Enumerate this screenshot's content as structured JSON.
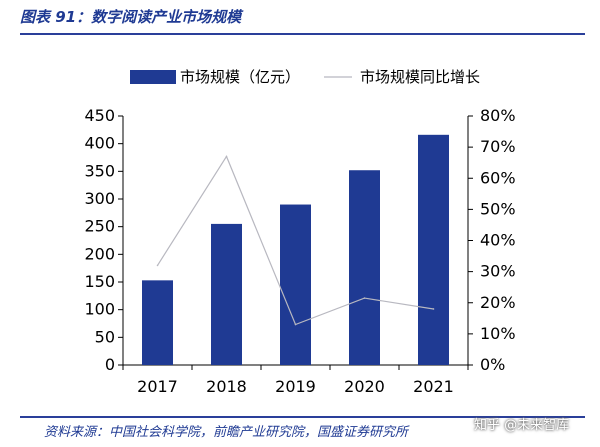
{
  "figure": {
    "title": "图表 91：数字阅读产业市场规模",
    "source": "资料来源：中国社会科学院，前瞻产业研究院，国盛证券研究所",
    "watermark": "知乎 @未来智库"
  },
  "colors": {
    "bar": "#1f3a93",
    "line": "#b8b8c0",
    "rule": "#2a3f9a"
  },
  "chart_data": {
    "type": "bar",
    "categories": [
      "2017",
      "2018",
      "2019",
      "2020",
      "2021"
    ],
    "series": [
      {
        "name": "市场规模（亿元）",
        "type": "bar",
        "axis": "left",
        "values": [
          153,
          255,
          290,
          352,
          416
        ]
      },
      {
        "name": "市场规模同比增长",
        "type": "line",
        "axis": "right",
        "values": [
          0.32,
          0.67,
          0.13,
          0.215,
          0.18
        ]
      }
    ],
    "ylim": [
      0,
      450
    ],
    "yticks": [
      "0",
      "50",
      "100",
      "150",
      "200",
      "250",
      "300",
      "350",
      "400",
      "450"
    ],
    "y2lim": [
      0,
      0.8
    ],
    "y2ticks": [
      "0%",
      "10%",
      "20%",
      "30%",
      "40%",
      "50%",
      "60%",
      "70%",
      "80%"
    ],
    "legend_position": "top",
    "grid": false
  }
}
